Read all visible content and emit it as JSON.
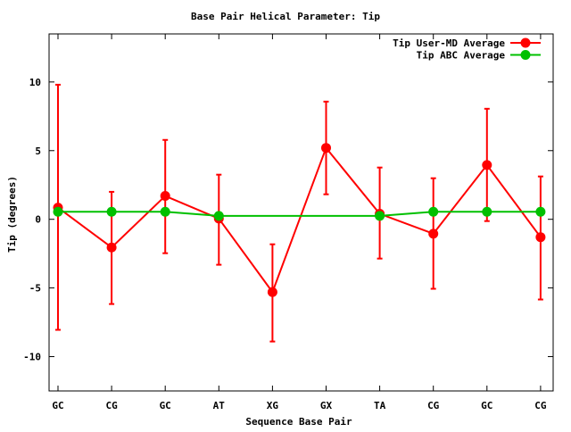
{
  "chart_data": {
    "type": "line",
    "title": "Base Pair Helical Parameter: Tip",
    "xlabel": "Sequence Base Pair",
    "ylabel": "Tip (degrees)",
    "categories": [
      "GC",
      "CG",
      "GC",
      "AT",
      "XG",
      "GX",
      "TA",
      "CG",
      "GC",
      "CG"
    ],
    "ylim": [
      -12.5,
      13.5
    ],
    "yticks": [
      10,
      5,
      0,
      -5,
      -10
    ],
    "ytick_labels": [
      "10",
      "5",
      "0",
      "-5",
      "-10"
    ],
    "grid": false,
    "legend_position": "top-right",
    "series": [
      {
        "name": "Tip User-MD Average",
        "color": "#ff0000",
        "values": [
          0.85,
          -2.05,
          1.7,
          0.05,
          -5.3,
          5.2,
          0.4,
          -1.05,
          3.95,
          -1.3
        ],
        "err_high": [
          9.8,
          2.0,
          5.78,
          3.25,
          -1.82,
          8.57,
          3.77,
          2.99,
          8.05,
          3.12
        ],
        "err_low": [
          -8.05,
          -6.17,
          -2.47,
          -3.31,
          -8.9,
          1.82,
          -2.86,
          -5.06,
          -0.13,
          -5.84
        ]
      },
      {
        "name": "Tip ABC Average",
        "color": "#00c000",
        "values": [
          0.55,
          0.55,
          0.55,
          0.25,
          null,
          null,
          0.25,
          0.55,
          0.55,
          0.55
        ]
      }
    ]
  }
}
